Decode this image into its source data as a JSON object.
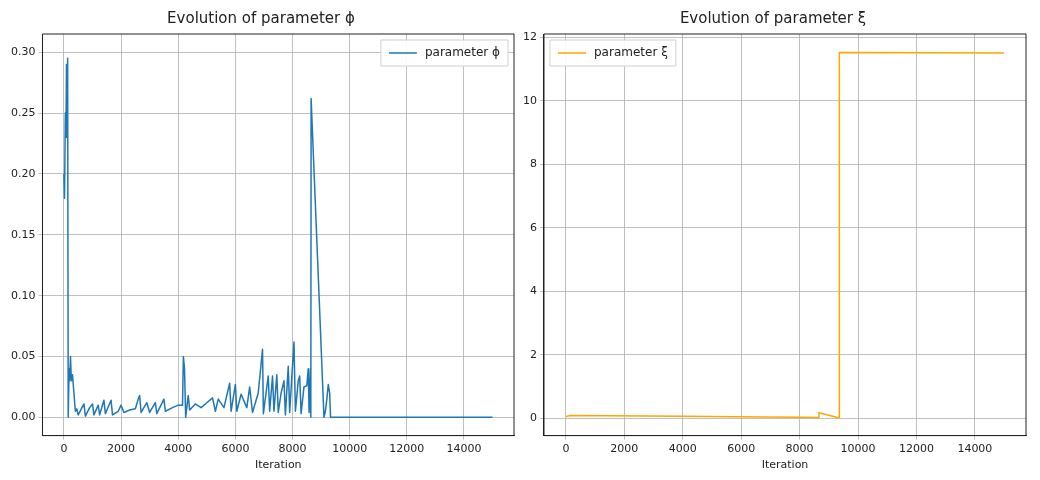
{
  "chart_data": [
    {
      "type": "line",
      "title": "Evolution of parameter ϕ",
      "xlabel": "Iteration",
      "xlim": [
        -750,
        15750
      ],
      "xticks": [
        0,
        2000,
        4000,
        6000,
        8000,
        10000,
        12000,
        14000
      ],
      "ylim": [
        -0.015,
        0.315
      ],
      "yticks": [
        {
          "value": 0,
          "label": "0.00"
        },
        {
          "value": 0.05,
          "label": "0.05"
        },
        {
          "value": 0.1,
          "label": "0.10"
        },
        {
          "value": 0.15,
          "label": "0.15"
        },
        {
          "value": 0.2,
          "label": "0.20"
        },
        {
          "value": 0.25,
          "label": "0.25"
        },
        {
          "value": 0.3,
          "label": "0.30"
        }
      ],
      "grid": true,
      "legend": "top right",
      "marker": "none",
      "line_style": "solid",
      "x": [
        0,
        20,
        50,
        70,
        90,
        110,
        130,
        150,
        180,
        200,
        230,
        260,
        300,
        350,
        400,
        450,
        500,
        700,
        750,
        900,
        1000,
        1050,
        1200,
        1250,
        1400,
        1450,
        1650,
        1700,
        1900,
        2000,
        2100,
        2300,
        2500,
        2600,
        2650,
        2700,
        2900,
        3000,
        3200,
        3250,
        3500,
        3550,
        3800,
        4000,
        4150,
        4180,
        4220,
        4260,
        4350,
        4400,
        4600,
        4800,
        5000,
        5200,
        5300,
        5400,
        5600,
        5800,
        5850,
        6000,
        6050,
        6200,
        6400,
        6500,
        6600,
        6800,
        6950,
        6980,
        7150,
        7200,
        7300,
        7350,
        7450,
        7500,
        7600,
        7700,
        7750,
        7850,
        7900,
        8050,
        8100,
        8200,
        8250,
        8300,
        8400,
        8500,
        8550,
        8580,
        8620,
        8640,
        8650,
        9100,
        9150,
        9200,
        9250,
        9300,
        9330,
        15000
      ],
      "series": [
        {
          "name": "parameter ϕ",
          "color": "#1f77b4",
          "values": [
            0.2,
            0.18,
            0.25,
            0.23,
            0.29,
            0.23,
            0.295,
            0.0,
            0.04,
            0.03,
            0.05,
            0.03,
            0.035,
            0.02,
            0.005,
            0.007,
            0.002,
            0.011,
            0.001,
            0.008,
            0.011,
            0.002,
            0.01,
            0.002,
            0.014,
            0.003,
            0.014,
            0.002,
            0.005,
            0.01,
            0.004,
            0.006,
            0.007,
            0.015,
            0.018,
            0.004,
            0.012,
            0.004,
            0.012,
            0.003,
            0.015,
            0.005,
            0.008,
            0.01,
            0.01,
            0.05,
            0.04,
            0.0,
            0.018,
            0.006,
            0.011,
            0.008,
            0.012,
            0.016,
            0.005,
            0.015,
            0.008,
            0.028,
            0.005,
            0.027,
            0.005,
            0.019,
            0.008,
            0.025,
            0.004,
            0.02,
            0.056,
            0.003,
            0.034,
            0.005,
            0.034,
            0.005,
            0.035,
            0.004,
            0.02,
            0.03,
            0.002,
            0.042,
            0.004,
            0.062,
            0.005,
            0.03,
            0.034,
            0.003,
            0.025,
            0.026,
            0.04,
            0.004,
            0.04,
            0.0,
            0.262,
            0.0,
            0.005,
            0.015,
            0.027,
            0.02,
            0.0,
            0.0
          ]
        }
      ]
    },
    {
      "type": "line",
      "title": "Evolution of parameter ξ",
      "xlabel": "Iteration",
      "xlim": [
        -750,
        15750
      ],
      "xticks": [
        0,
        2000,
        4000,
        6000,
        8000,
        10000,
        12000,
        14000
      ],
      "ylim": [
        -0.55,
        12.1
      ],
      "yticks": [
        0,
        2,
        4,
        6,
        8,
        10,
        12
      ],
      "grid": true,
      "legend": "top left",
      "marker": "none",
      "line_style": "solid",
      "x": [
        0,
        150,
        4000,
        8000,
        8650,
        8660,
        9300,
        9350,
        9360,
        15000
      ],
      "series": [
        {
          "name": "parameter ξ",
          "color": "#ffa500",
          "values": [
            0.05,
            0.08,
            0.06,
            0.03,
            0.02,
            0.17,
            0.02,
            0.02,
            11.52,
            11.5
          ]
        }
      ]
    }
  ]
}
